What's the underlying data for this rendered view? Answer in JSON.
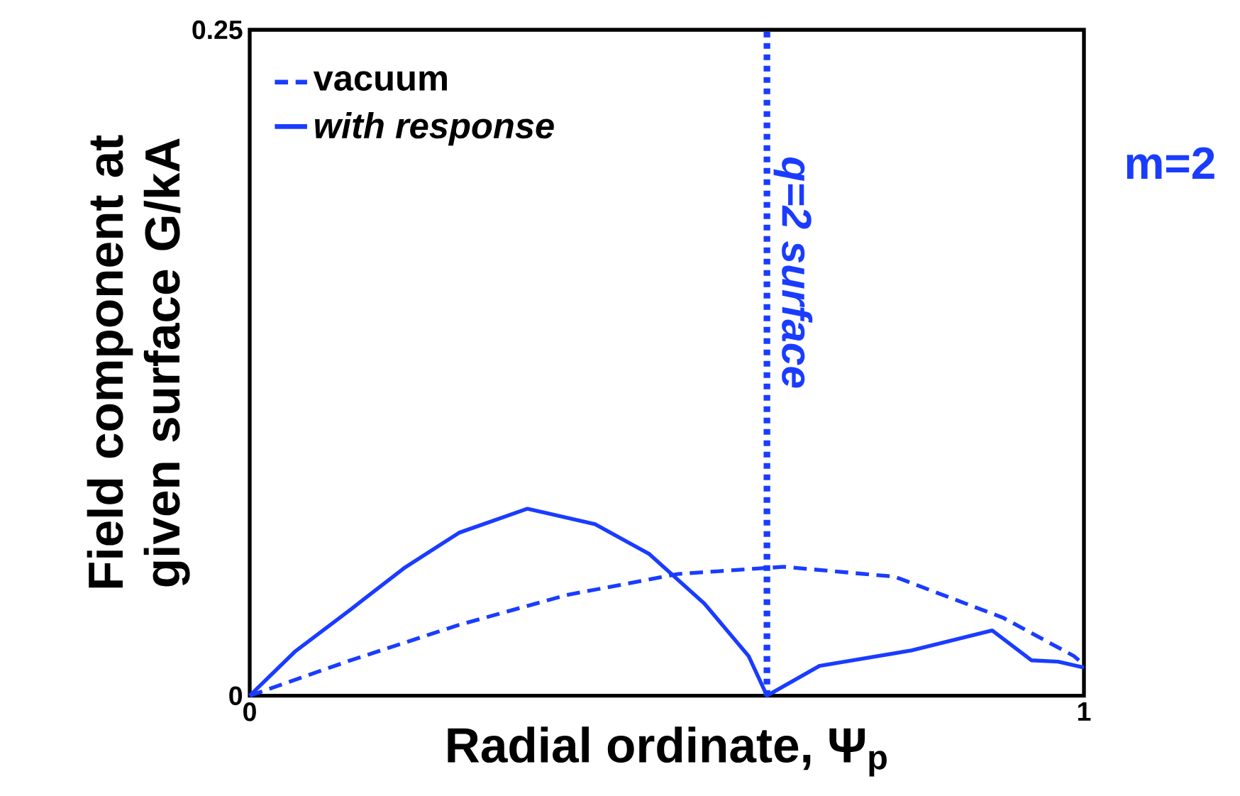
{
  "chart_data": {
    "type": "line",
    "xlabel": "Radial ordinate, Ψ$_{p}$",
    "ylabel": "Field component at given surface G/kA",
    "xlim": [
      0,
      1
    ],
    "ylim": [
      0,
      0.25
    ],
    "xticks": [
      0,
      1
    ],
    "yticks": [
      0,
      0.25
    ],
    "legend": "top left",
    "series": [
      {
        "name": "vacuum",
        "color": "#1a3cff",
        "line_style": "dashed",
        "x": [
          0,
          0.121,
          0.251,
          0.38,
          0.513,
          0.64,
          0.773,
          0.903,
          0.988,
          1
        ],
        "values": [
          0,
          0.0133,
          0.0266,
          0.0378,
          0.0457,
          0.0484,
          0.0447,
          0.0293,
          0.0149,
          0.0117
        ]
      },
      {
        "name": "with response",
        "color": "#1a3cff",
        "line_style": "solid",
        "x": [
          0,
          0.054,
          0.121,
          0.185,
          0.251,
          0.333,
          0.414,
          0.479,
          0.545,
          0.598,
          0.62,
          0.683,
          0.793,
          0.89,
          0.937,
          0.969,
          1
        ],
        "values": [
          0,
          0.0165,
          0.0324,
          0.0479,
          0.0612,
          0.0702,
          0.0644,
          0.0532,
          0.0346,
          0.0149,
          0,
          0.0112,
          0.017,
          0.0245,
          0.0133,
          0.0128,
          0.0106
        ]
      }
    ],
    "ref_lines": [
      {
        "axis": "x",
        "value": 0.62,
        "color": "#1a3cff",
        "line_style": "dotted"
      }
    ],
    "annotations": [
      "m=2",
      {
        "text": "q=2 surface",
        "x": 0.62,
        "y": 0.205
      }
    ]
  }
}
